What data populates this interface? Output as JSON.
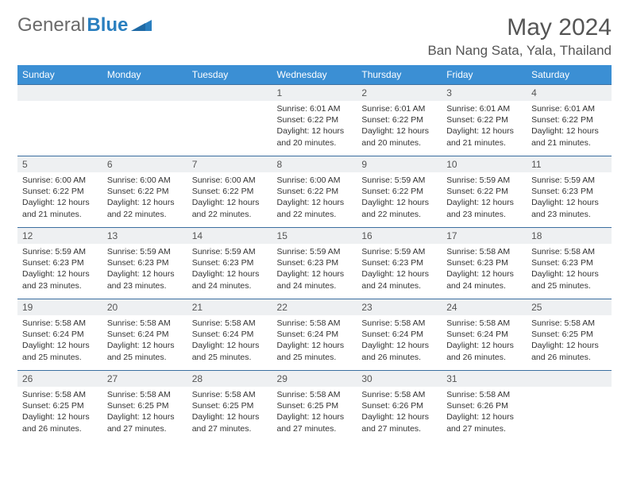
{
  "brand": {
    "part1": "General",
    "part2": "Blue"
  },
  "title": "May 2024",
  "location": "Ban Nang Sata, Yala, Thailand",
  "colors": {
    "header_bg": "#3b8fd4",
    "header_text": "#ffffff",
    "row_border": "#3b6fa0",
    "daynum_bg": "#eef0f2",
    "logo_gray": "#6a6a6a",
    "logo_blue": "#2a7fbf"
  },
  "weekdays": [
    "Sunday",
    "Monday",
    "Tuesday",
    "Wednesday",
    "Thursday",
    "Friday",
    "Saturday"
  ],
  "weeks": [
    [
      null,
      null,
      null,
      {
        "n": "1",
        "sr": "6:01 AM",
        "ss": "6:22 PM",
        "dl": "12 hours and 20 minutes."
      },
      {
        "n": "2",
        "sr": "6:01 AM",
        "ss": "6:22 PM",
        "dl": "12 hours and 20 minutes."
      },
      {
        "n": "3",
        "sr": "6:01 AM",
        "ss": "6:22 PM",
        "dl": "12 hours and 21 minutes."
      },
      {
        "n": "4",
        "sr": "6:01 AM",
        "ss": "6:22 PM",
        "dl": "12 hours and 21 minutes."
      }
    ],
    [
      {
        "n": "5",
        "sr": "6:00 AM",
        "ss": "6:22 PM",
        "dl": "12 hours and 21 minutes."
      },
      {
        "n": "6",
        "sr": "6:00 AM",
        "ss": "6:22 PM",
        "dl": "12 hours and 22 minutes."
      },
      {
        "n": "7",
        "sr": "6:00 AM",
        "ss": "6:22 PM",
        "dl": "12 hours and 22 minutes."
      },
      {
        "n": "8",
        "sr": "6:00 AM",
        "ss": "6:22 PM",
        "dl": "12 hours and 22 minutes."
      },
      {
        "n": "9",
        "sr": "5:59 AM",
        "ss": "6:22 PM",
        "dl": "12 hours and 22 minutes."
      },
      {
        "n": "10",
        "sr": "5:59 AM",
        "ss": "6:22 PM",
        "dl": "12 hours and 23 minutes."
      },
      {
        "n": "11",
        "sr": "5:59 AM",
        "ss": "6:23 PM",
        "dl": "12 hours and 23 minutes."
      }
    ],
    [
      {
        "n": "12",
        "sr": "5:59 AM",
        "ss": "6:23 PM",
        "dl": "12 hours and 23 minutes."
      },
      {
        "n": "13",
        "sr": "5:59 AM",
        "ss": "6:23 PM",
        "dl": "12 hours and 23 minutes."
      },
      {
        "n": "14",
        "sr": "5:59 AM",
        "ss": "6:23 PM",
        "dl": "12 hours and 24 minutes."
      },
      {
        "n": "15",
        "sr": "5:59 AM",
        "ss": "6:23 PM",
        "dl": "12 hours and 24 minutes."
      },
      {
        "n": "16",
        "sr": "5:59 AM",
        "ss": "6:23 PM",
        "dl": "12 hours and 24 minutes."
      },
      {
        "n": "17",
        "sr": "5:58 AM",
        "ss": "6:23 PM",
        "dl": "12 hours and 24 minutes."
      },
      {
        "n": "18",
        "sr": "5:58 AM",
        "ss": "6:23 PM",
        "dl": "12 hours and 25 minutes."
      }
    ],
    [
      {
        "n": "19",
        "sr": "5:58 AM",
        "ss": "6:24 PM",
        "dl": "12 hours and 25 minutes."
      },
      {
        "n": "20",
        "sr": "5:58 AM",
        "ss": "6:24 PM",
        "dl": "12 hours and 25 minutes."
      },
      {
        "n": "21",
        "sr": "5:58 AM",
        "ss": "6:24 PM",
        "dl": "12 hours and 25 minutes."
      },
      {
        "n": "22",
        "sr": "5:58 AM",
        "ss": "6:24 PM",
        "dl": "12 hours and 25 minutes."
      },
      {
        "n": "23",
        "sr": "5:58 AM",
        "ss": "6:24 PM",
        "dl": "12 hours and 26 minutes."
      },
      {
        "n": "24",
        "sr": "5:58 AM",
        "ss": "6:24 PM",
        "dl": "12 hours and 26 minutes."
      },
      {
        "n": "25",
        "sr": "5:58 AM",
        "ss": "6:25 PM",
        "dl": "12 hours and 26 minutes."
      }
    ],
    [
      {
        "n": "26",
        "sr": "5:58 AM",
        "ss": "6:25 PM",
        "dl": "12 hours and 26 minutes."
      },
      {
        "n": "27",
        "sr": "5:58 AM",
        "ss": "6:25 PM",
        "dl": "12 hours and 27 minutes."
      },
      {
        "n": "28",
        "sr": "5:58 AM",
        "ss": "6:25 PM",
        "dl": "12 hours and 27 minutes."
      },
      {
        "n": "29",
        "sr": "5:58 AM",
        "ss": "6:25 PM",
        "dl": "12 hours and 27 minutes."
      },
      {
        "n": "30",
        "sr": "5:58 AM",
        "ss": "6:26 PM",
        "dl": "12 hours and 27 minutes."
      },
      {
        "n": "31",
        "sr": "5:58 AM",
        "ss": "6:26 PM",
        "dl": "12 hours and 27 minutes."
      },
      null
    ]
  ],
  "labels": {
    "sunrise": "Sunrise:",
    "sunset": "Sunset:",
    "daylight": "Daylight:"
  }
}
